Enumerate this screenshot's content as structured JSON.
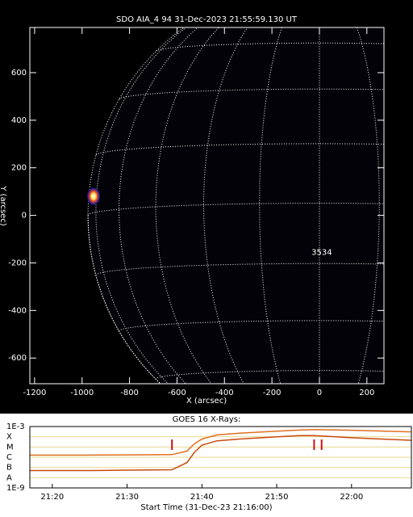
{
  "chart_data": [
    {
      "type": "image",
      "title": "SDO AIA_4 94 31-Dec-2023 21:55:59.130 UT",
      "xlabel": "X (arcsec)",
      "ylabel": "Y (arcsec)",
      "xlim": [
        -1220,
        272
      ],
      "ylim": [
        -708,
        790
      ],
      "xticks": [
        -1200,
        -1000,
        -800,
        -600,
        -400,
        -200,
        0,
        200
      ],
      "yticks": [
        -600,
        -400,
        -200,
        0,
        200,
        400,
        600
      ],
      "annotations": [
        {
          "text": "3534",
          "x": 10,
          "y": -156
        }
      ]
    },
    {
      "type": "line",
      "title": "GOES 16 X-Rays:",
      "xlabel": "Start Time (31-Dec-23 21:16:00)",
      "x": [
        "21:17",
        "21:25",
        "21:30",
        "21:36",
        "21:38",
        "21:39",
        "21:40",
        "21:42",
        "21:45",
        "21:50",
        "21:53",
        "21:55",
        "21:58",
        "22:00",
        "22:04",
        "22:08"
      ],
      "series": [
        {
          "color": "#e07020",
          "values": [
            1.6e-06,
            1.6e-06,
            1.7e-06,
            1.8e-06,
            4e-06,
            2e-05,
            6e-05,
            0.00015,
            0.00022,
            0.00035,
            0.00045,
            0.0005,
            0.00046,
            0.00043,
            0.00036,
            0.0003
          ]
        },
        {
          "color": "#c84a10",
          "values": [
            5e-08,
            5e-08,
            5.5e-08,
            6e-08,
            3e-07,
            3e-06,
            1.5e-05,
            4e-05,
            6e-05,
            0.0001,
            0.00013,
            0.00013,
            0.0001,
            8e-05,
            6e-05,
            4.5e-05
          ]
        }
      ],
      "xlim": [
        "21:17",
        "22:08"
      ],
      "xticks": [
        "21:20",
        "21:30",
        "21:40",
        "21:50",
        "22:00"
      ],
      "ylim": [
        1e-09,
        0.001
      ],
      "log_scale": true,
      "grid": true,
      "yticks": [
        {
          "value": 0.001,
          "label": "1E-3"
        },
        {
          "value": 0.0001,
          "label": "X"
        },
        {
          "value": 1e-05,
          "label": "M"
        },
        {
          "value": 1e-06,
          "label": "C"
        },
        {
          "value": 1e-07,
          "label": "B"
        },
        {
          "value": 1e-08,
          "label": "A"
        },
        {
          "value": 1e-09,
          "label": "1E-9"
        }
      ],
      "event_times": [
        "21:36",
        "21:55",
        "21:56"
      ],
      "event_color": "#cc1010"
    }
  ]
}
